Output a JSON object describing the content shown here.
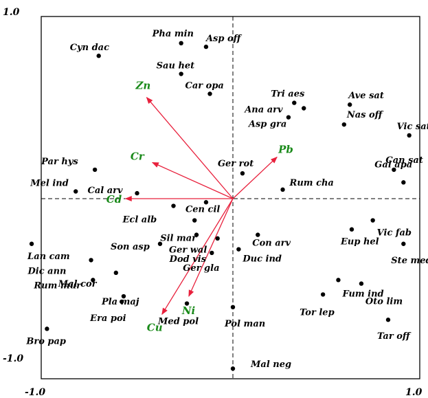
{
  "chart_data": {
    "type": "scatter",
    "title": "",
    "xlabel": "",
    "ylabel": "",
    "xlim": [
      -1.0,
      1.0
    ],
    "ylim": [
      -1.0,
      1.0
    ],
    "x_tick_labels": [
      "-1.0",
      "1.0"
    ],
    "y_tick_labels": [
      "1.0",
      "-1.0"
    ],
    "colors": {
      "species": "#000000",
      "vector": "#e8203c",
      "env_label": "#1a8a1a",
      "axis": "#000000"
    },
    "species": [
      {
        "name": "Pha min",
        "x": -0.27,
        "y": 0.86
      },
      {
        "name": "Asp off",
        "x": -0.14,
        "y": 0.84
      },
      {
        "name": "Cyn dac",
        "x": -0.7,
        "y": 0.79
      },
      {
        "name": "Sau het",
        "x": -0.27,
        "y": 0.69
      },
      {
        "name": "Car opa",
        "x": -0.12,
        "y": 0.58
      },
      {
        "name": "Tri aes",
        "x": 0.32,
        "y": 0.53
      },
      {
        "name": "Ana arv",
        "x": 0.37,
        "y": 0.5
      },
      {
        "name": "Asp gra",
        "x": 0.29,
        "y": 0.45
      },
      {
        "name": "Ave sat",
        "x": 0.61,
        "y": 0.52
      },
      {
        "name": "Nas off",
        "x": 0.58,
        "y": 0.41
      },
      {
        "name": "Vic sat",
        "x": 0.92,
        "y": 0.35
      },
      {
        "name": "Can sat",
        "x": 0.84,
        "y": 0.16
      },
      {
        "name": "Gal apa",
        "x": 0.89,
        "y": 0.09
      },
      {
        "name": "Ger rot",
        "x": 0.05,
        "y": 0.14
      },
      {
        "name": "Rum cha",
        "x": 0.26,
        "y": 0.05
      },
      {
        "name": "Par hys",
        "x": -0.72,
        "y": 0.16
      },
      {
        "name": "Mel ind",
        "x": -0.82,
        "y": 0.04
      },
      {
        "name": "Cal arv",
        "x": -0.5,
        "y": 0.03
      },
      {
        "name": "Ecl alb",
        "x": -0.31,
        "y": -0.04
      },
      {
        "name": "Cen cil",
        "x": -0.14,
        "y": -0.02
      },
      {
        "name": "Sil mar",
        "x": -0.2,
        "y": -0.12
      },
      {
        "name": "Ger wal",
        "x": -0.19,
        "y": -0.2
      },
      {
        "name": "Con arv",
        "x": 0.13,
        "y": -0.2
      },
      {
        "name": "Dod vis",
        "x": -0.08,
        "y": -0.22
      },
      {
        "name": "Duc ind",
        "x": 0.03,
        "y": -0.28
      },
      {
        "name": "Ger gla",
        "x": -0.11,
        "y": -0.3
      },
      {
        "name": "Son asp",
        "x": -0.38,
        "y": -0.25
      },
      {
        "name": "Lan cam",
        "x": -1.05,
        "y": -0.25
      },
      {
        "name": "Dic ann",
        "x": -0.74,
        "y": -0.34
      },
      {
        "name": "Mal cor",
        "x": -0.61,
        "y": -0.41
      },
      {
        "name": "Rum mur",
        "x": -0.73,
        "y": -0.45
      },
      {
        "name": "Pla maj",
        "x": -0.57,
        "y": -0.54
      },
      {
        "name": "Era poi",
        "x": -0.58,
        "y": -0.57
      },
      {
        "name": "Med pol",
        "x": -0.24,
        "y": -0.58
      },
      {
        "name": "Pol man",
        "x": 0.0,
        "y": -0.6
      },
      {
        "name": "Vic fab",
        "x": 0.73,
        "y": -0.12
      },
      {
        "name": "Eup hel",
        "x": 0.62,
        "y": -0.17
      },
      {
        "name": "Ste med",
        "x": 0.89,
        "y": -0.25
      },
      {
        "name": "Fum ind",
        "x": 0.55,
        "y": -0.45
      },
      {
        "name": "Tor lep",
        "x": 0.47,
        "y": -0.53
      },
      {
        "name": "Oto lim",
        "x": 0.67,
        "y": -0.47
      },
      {
        "name": "Tar off",
        "x": 0.81,
        "y": -0.67
      },
      {
        "name": "Bro pap",
        "x": -0.97,
        "y": -0.72
      },
      {
        "name": "Mal neg",
        "x": 0.0,
        "y": -0.94
      }
    ],
    "env_vectors": [
      {
        "name": "Zn",
        "x": -0.45,
        "y": 0.56
      },
      {
        "name": "Cr",
        "x": -0.42,
        "y": 0.2
      },
      {
        "name": "Cd",
        "x": -0.56,
        "y": 0.0
      },
      {
        "name": "Pb",
        "x": 0.23,
        "y": 0.23
      },
      {
        "name": "Ni",
        "x": -0.23,
        "y": -0.54
      },
      {
        "name": "Cu",
        "x": -0.37,
        "y": -0.64
      }
    ]
  }
}
